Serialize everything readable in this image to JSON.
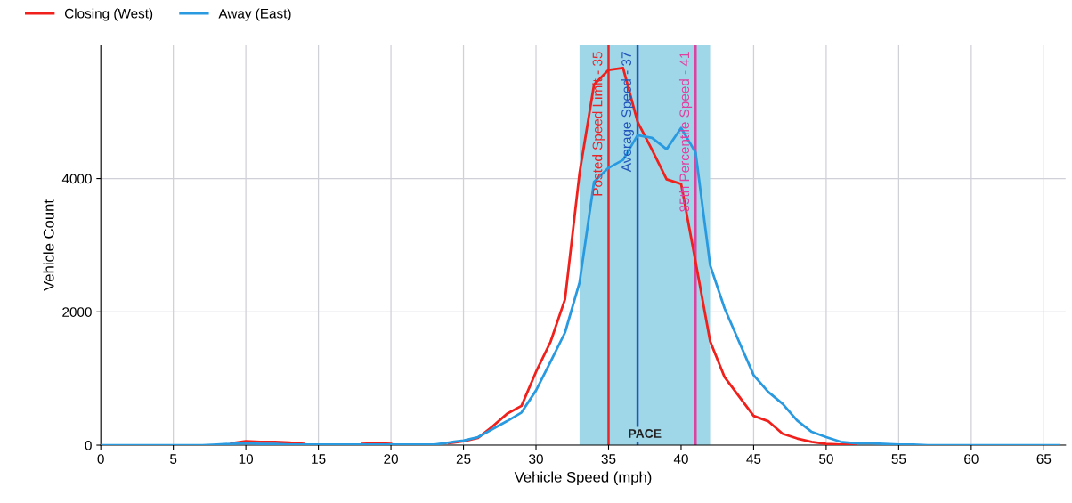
{
  "chart_data": {
    "type": "line",
    "xlabel": "Vehicle Speed (mph)",
    "ylabel": "Vehicle Count",
    "x": [
      0,
      1,
      2,
      3,
      4,
      5,
      6,
      7,
      8,
      9,
      10,
      11,
      12,
      13,
      14,
      15,
      16,
      17,
      18,
      19,
      20,
      21,
      22,
      23,
      24,
      25,
      26,
      27,
      28,
      29,
      30,
      31,
      32,
      33,
      34,
      35,
      36,
      37,
      38,
      39,
      40,
      41,
      42,
      43,
      44,
      45,
      46,
      47,
      48,
      49,
      50,
      51,
      52,
      53,
      54,
      55,
      56,
      57,
      58,
      59,
      60,
      61,
      62,
      63,
      64,
      65,
      66
    ],
    "series": [
      {
        "name": "Closing (West)",
        "color": "#f0201c",
        "values": [
          null,
          null,
          null,
          null,
          null,
          null,
          null,
          null,
          null,
          30,
          60,
          50,
          50,
          40,
          20,
          null,
          null,
          null,
          20,
          30,
          20,
          null,
          null,
          null,
          30,
          60,
          110,
          280,
          470,
          590,
          1100,
          1550,
          2190,
          4080,
          5410,
          5630,
          5660,
          4850,
          4430,
          3990,
          3920,
          2750,
          1560,
          1020,
          730,
          440,
          360,
          170,
          100,
          50,
          20,
          10,
          10,
          null,
          null,
          null,
          null,
          null,
          null,
          null,
          null,
          null,
          null,
          null,
          null,
          null,
          null
        ]
      },
      {
        "name": "Away (East)",
        "color": "#2a9ae0",
        "values": [
          0,
          0,
          0,
          0,
          0,
          0,
          0,
          0,
          10,
          20,
          30,
          20,
          20,
          10,
          10,
          10,
          10,
          10,
          10,
          10,
          10,
          10,
          10,
          10,
          40,
          70,
          120,
          240,
          360,
          490,
          820,
          1250,
          1690,
          2440,
          3950,
          4160,
          4280,
          4650,
          4610,
          4440,
          4760,
          4390,
          2700,
          2050,
          1550,
          1050,
          800,
          620,
          370,
          200,
          120,
          50,
          30,
          30,
          20,
          10,
          10,
          0,
          0,
          0,
          0,
          0,
          0,
          0,
          0,
          0,
          0
        ]
      }
    ],
    "xlim": [
      0,
      66.5
    ],
    "xticks": [
      0,
      5,
      10,
      15,
      20,
      25,
      30,
      35,
      40,
      45,
      50,
      55,
      60,
      65
    ],
    "ylim": [
      0,
      6000
    ],
    "yticks": [
      0,
      2000,
      4000
    ],
    "ref_lines": [
      {
        "axis": "x",
        "value": 35,
        "label": "Posted Speed Limit - 35",
        "color": "#e8262a"
      },
      {
        "axis": "x",
        "value": 37,
        "label": "Average Speed - 37",
        "color": "#2255bb"
      },
      {
        "axis": "x",
        "value": 41,
        "label": "85th Percentile Speed - 41",
        "color": "#e040a0"
      }
    ],
    "bands": [
      {
        "axis": "x",
        "from": 33,
        "to": 42,
        "label": "PACE",
        "color": "#9fd7e8"
      }
    ],
    "grid": true,
    "legend": "top left",
    "marker": "none",
    "line_style": "solid"
  }
}
